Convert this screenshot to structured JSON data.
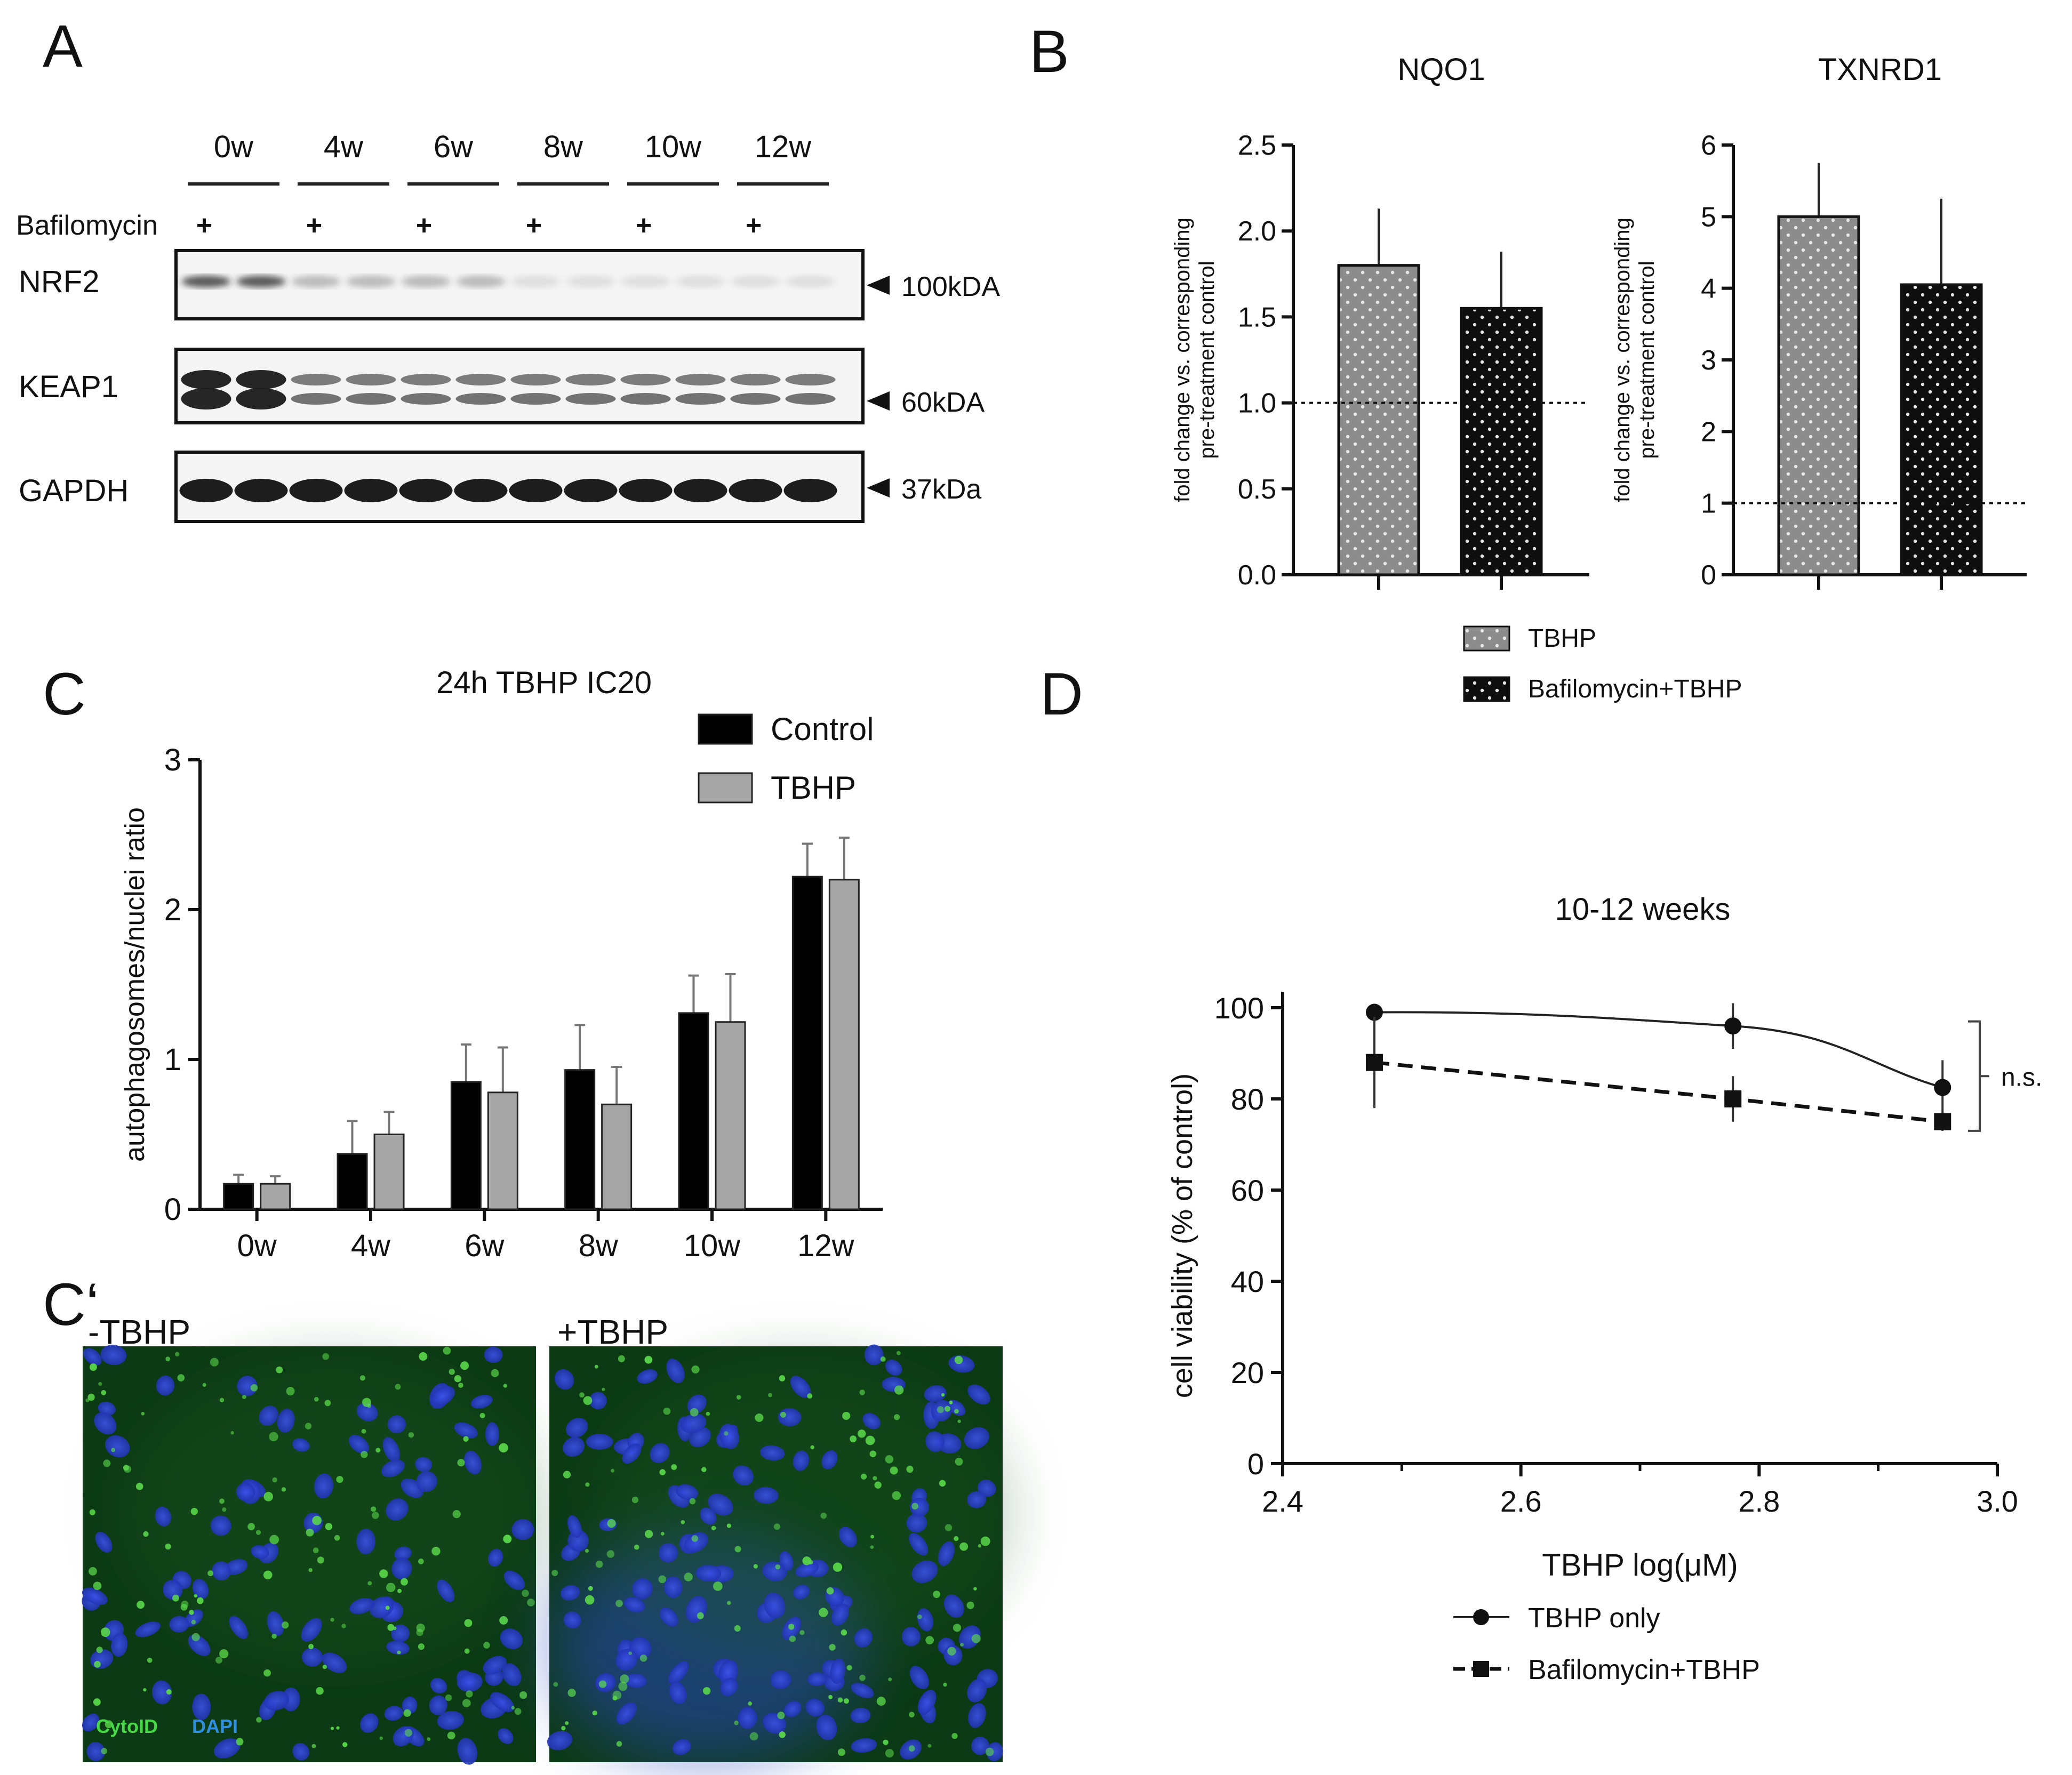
{
  "panel_letters": {
    "a": "A",
    "b": "B",
    "c": "C",
    "c_prime": "C‘",
    "d": "D"
  },
  "western_blot": {
    "timepoints": [
      "0w",
      "4w",
      "6w",
      "8w",
      "10w",
      "12w"
    ],
    "treatment_label": "Bafilomycin",
    "plus_sign": "+",
    "rows": [
      {
        "protein": "NRF2",
        "marker": "100kDA"
      },
      {
        "protein": "KEAP1",
        "marker": "60kDA"
      },
      {
        "protein": "GAPDH",
        "marker": "37kDa"
      }
    ]
  },
  "legend_b": {
    "items": [
      "TBHP",
      "Bafilomycin+TBHP"
    ]
  },
  "legend_c": {
    "items": [
      "Control",
      "TBHP"
    ]
  },
  "legend_d": {
    "items": [
      "TBHP only",
      "Bafilomycin+TBHP"
    ]
  },
  "microscopy": {
    "left_label": "-TBHP",
    "right_label": "+TBHP",
    "stain_cytoid": "CytoID",
    "stain_dapi": "DAPI"
  },
  "colors": {
    "tbhp_bar": "#8c8c8c",
    "bafilomycin_bar": "#111111",
    "control_bar": "#000000",
    "tbhp_c_bar": "#a6a6a6",
    "microscopy_bg": "#0c3a14",
    "nuclei": "#2a3cc8",
    "cytoid": "#5ad84a"
  },
  "chart_data": [
    {
      "id": "nqo1",
      "type": "bar",
      "title": "NQO1",
      "ylabel": "fold change vs. corresponding pre-treatment control",
      "ylabel_line1": "fold change vs. corresponding",
      "ylabel_line2": "pre-treatment control",
      "ylim": [
        0,
        2.5
      ],
      "yticks": [
        "0.0",
        "0.5",
        "1.0",
        "1.5",
        "2.0",
        "2.5"
      ],
      "reference_line": 1.0,
      "series": [
        {
          "name": "TBHP",
          "value": 1.8,
          "error": 0.33
        },
        {
          "name": "Bafilomycin+TBHP",
          "value": 1.55,
          "error": 0.33
        }
      ]
    },
    {
      "id": "txnrd1",
      "type": "bar",
      "title": "TXNRD1",
      "ylabel": "fold change vs. corresponding pre-treatment control",
      "ylabel_line1": "fold change vs. corresponding",
      "ylabel_line2": "pre-treatment control",
      "ylim": [
        0,
        6
      ],
      "yticks": [
        "0",
        "1",
        "2",
        "3",
        "4",
        "5",
        "6"
      ],
      "reference_line": 1.0,
      "series": [
        {
          "name": "TBHP",
          "value": 5.0,
          "error": 0.75
        },
        {
          "name": "Bafilomycin+TBHP",
          "value": 4.05,
          "error": 1.2
        }
      ]
    },
    {
      "id": "autophagosomes",
      "type": "bar",
      "title": "24h TBHP IC20",
      "ylabel": "autophagosomes/nuclei ratio",
      "ylim": [
        0,
        3
      ],
      "yticks": [
        "0",
        "1",
        "2",
        "3"
      ],
      "categories": [
        "0w",
        "4w",
        "6w",
        "8w",
        "10w",
        "12w"
      ],
      "series": [
        {
          "name": "Control",
          "values": [
            0.17,
            0.37,
            0.85,
            0.93,
            1.31,
            2.22
          ],
          "errors": [
            0.06,
            0.22,
            0.25,
            0.3,
            0.25,
            0.22
          ]
        },
        {
          "name": "TBHP",
          "values": [
            0.17,
            0.5,
            0.78,
            0.7,
            1.25,
            2.2
          ],
          "errors": [
            0.05,
            0.15,
            0.3,
            0.25,
            0.32,
            0.28
          ]
        }
      ]
    },
    {
      "id": "viability",
      "type": "line",
      "title": "10-12 weeks",
      "xlabel": "TBHP log(μM)",
      "ylabel": "cell viability (% of control)",
      "xlim": [
        2.4,
        3.0
      ],
      "ylim": [
        0,
        100
      ],
      "xticks": [
        "2.4",
        "2.6",
        "2.8",
        "3.0"
      ],
      "yticks": [
        "0",
        "20",
        "40",
        "60",
        "80",
        "100"
      ],
      "annotation": "n.s.",
      "series": [
        {
          "name": "TBHP only",
          "x": [
            2.477,
            2.778,
            2.954
          ],
          "y": [
            99,
            96,
            82.5
          ],
          "errors": [
            0,
            5,
            6
          ]
        },
        {
          "name": "Bafilomycin+TBHP",
          "x": [
            2.477,
            2.778,
            2.954
          ],
          "y": [
            88,
            80,
            75
          ],
          "errors": [
            10,
            5,
            2
          ]
        }
      ]
    }
  ]
}
